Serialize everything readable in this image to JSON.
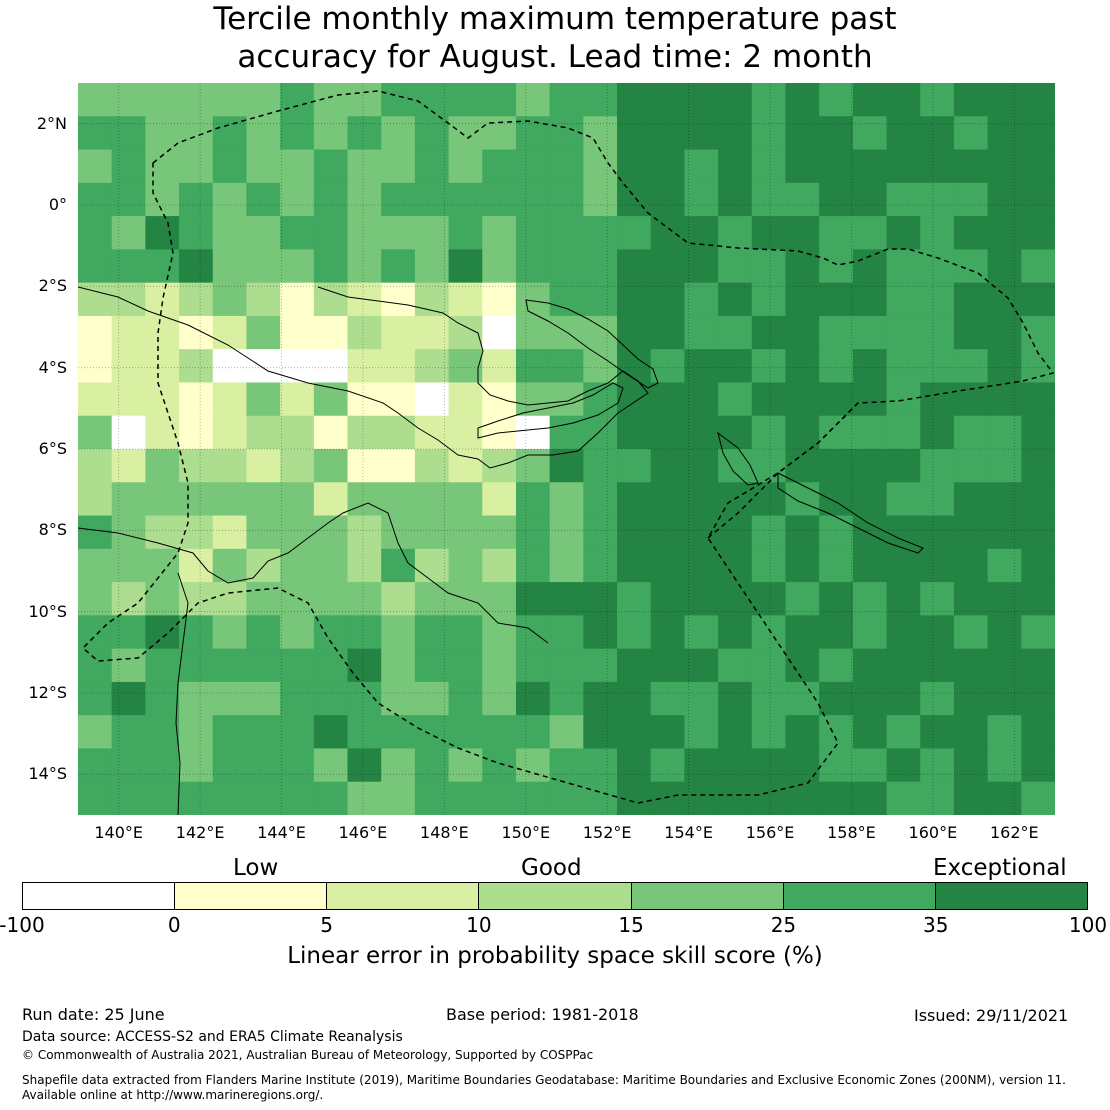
{
  "title": {
    "line1": "Tercile monthly maximum temperature past",
    "line2": "accuracy for August. Lead time: 2 month"
  },
  "map": {
    "latitude_labels": [
      "2°N",
      "0°",
      "2°S",
      "4°S",
      "6°S",
      "8°S",
      "10°S",
      "12°S",
      "14°S"
    ],
    "longitude_labels": [
      "140°E",
      "142°E",
      "144°E",
      "146°E",
      "148°E",
      "150°E",
      "152°E",
      "154°E",
      "156°E",
      "158°E",
      "160°E",
      "162°E"
    ],
    "extent": {
      "lon_min": 139.0,
      "lon_max": 163.0,
      "lat_min": -15.0,
      "lat_max": 3.0
    },
    "grid_resolution_deg": 0.833,
    "regions": [
      {
        "name": "Papua New Guinea EEZ",
        "boundary": "dashed"
      },
      {
        "name": "Solomon Islands EEZ",
        "boundary": "dashed"
      }
    ]
  },
  "colorbar": {
    "categories": [
      "Low",
      "Good",
      "Exceptional"
    ],
    "ticks": [
      "-100",
      "0",
      "5",
      "10",
      "15",
      "25",
      "35",
      "100"
    ],
    "segments": [
      {
        "from": -100,
        "to": 0,
        "color": "#ffffff"
      },
      {
        "from": 0,
        "to": 5,
        "color": "#ffffcc"
      },
      {
        "from": 5,
        "to": 10,
        "color": "#d9f0a3"
      },
      {
        "from": 10,
        "to": 15,
        "color": "#addd8e"
      },
      {
        "from": 15,
        "to": 25,
        "color": "#78c679"
      },
      {
        "from": 25,
        "to": 35,
        "color": "#41a85f"
      },
      {
        "from": 35,
        "to": 100,
        "color": "#238443"
      }
    ],
    "label": "Linear error in probability space skill score (%)"
  },
  "footer": {
    "run_date": "Run date: 25 June",
    "base_period": "Base period: 1981-2018",
    "issued": "Issued: 29/11/2021",
    "data_source": "Data source: ACCESS-S2 and ERA5 Climate Reanalysis",
    "copyright": "© Commonwealth of Australia 2021, Australian Bureau of Meteorology, Supported by COSPPac",
    "shapefile_line1": "Shapefile data extracted from Flanders Marine Institute (2019), Maritime Boundaries Geodatabase: Maritime Boundaries and Exclusive Economic Zones (200NM), version 11.",
    "shapefile_line2": "Available online at http://www.marineregions.org/."
  }
}
